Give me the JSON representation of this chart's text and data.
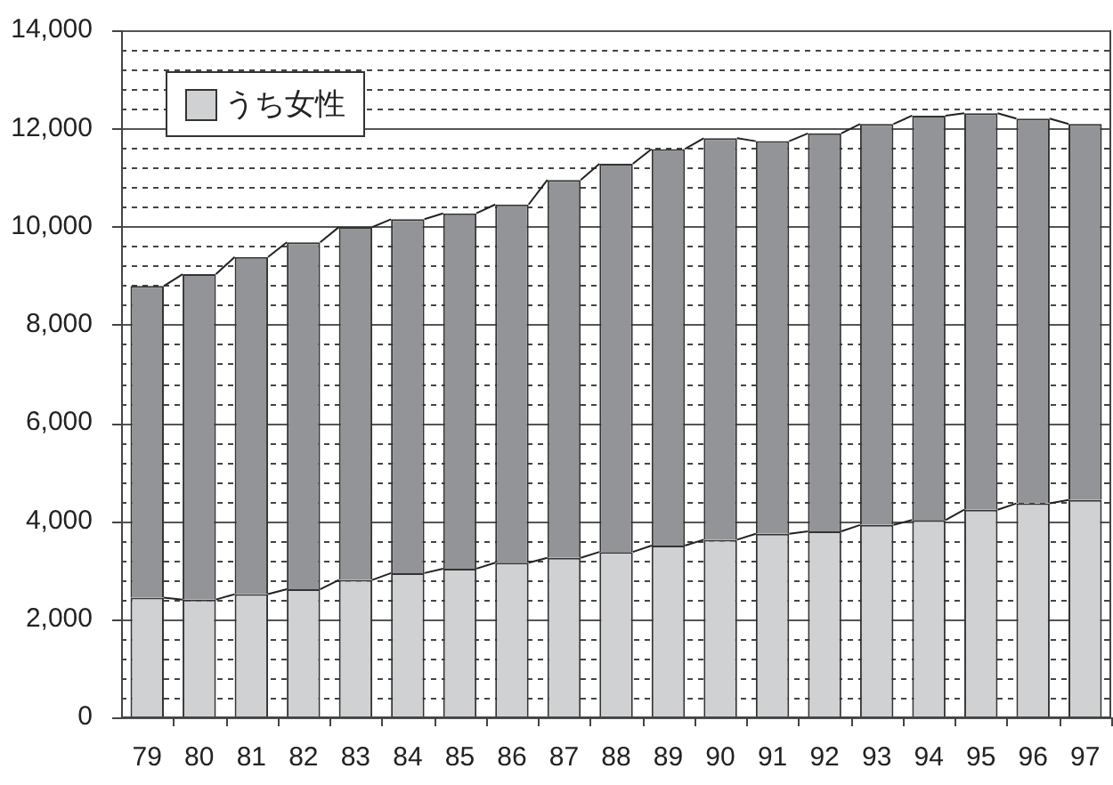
{
  "chart_data": {
    "type": "bar",
    "stacked": true,
    "categories": [
      "79",
      "80",
      "81",
      "82",
      "83",
      "84",
      "85",
      "86",
      "87",
      "88",
      "89",
      "90",
      "91",
      "92",
      "93",
      "94",
      "95",
      "96",
      "97"
    ],
    "series": [
      {
        "name": "うち女性",
        "color": "#d0d1d3",
        "values": [
          2440,
          2400,
          2510,
          2610,
          2800,
          2940,
          3030,
          3150,
          3250,
          3370,
          3500,
          3620,
          3740,
          3790,
          3920,
          4020,
          4230,
          4360,
          4430
        ]
      },
      {
        "color": "#929497",
        "values": [
          6350,
          6630,
          6870,
          7070,
          7190,
          7210,
          7240,
          7300,
          7700,
          7910,
          8080,
          8180,
          8000,
          8110,
          8170,
          8240,
          8080,
          7840,
          7660
        ]
      }
    ],
    "ylim": [
      0,
      14000
    ],
    "yticks": [
      0,
      {
        "value": 400,
        "label": null
      },
      {
        "value": 800,
        "label": null
      },
      {
        "value": 1200,
        "label": null
      },
      {
        "value": 1600,
        "label": null
      },
      "2,000",
      {
        "value": 2400,
        "label": null
      },
      {
        "value": 2800,
        "label": null
      },
      {
        "value": 3200,
        "label": null
      },
      {
        "value": 3600,
        "label": null
      },
      {
        "value": 4000,
        "label": "4,000"
      },
      {
        "value": 4400,
        "label": null
      },
      {
        "value": 4800,
        "label": null
      },
      {
        "value": 5200,
        "label": null
      },
      {
        "value": 5600,
        "label": null
      },
      {
        "value": 6000,
        "label": "6,000"
      },
      {
        "value": 6400,
        "label": null
      },
      {
        "value": 6800,
        "label": null
      },
      {
        "value": 7200,
        "label": null
      },
      {
        "value": 7600,
        "label": null
      },
      {
        "value": 8000,
        "label": "8,000"
      },
      {
        "value": 8400,
        "label": null
      },
      {
        "value": 8800,
        "label": null
      },
      {
        "value": 9200,
        "label": null
      },
      {
        "value": 9600,
        "label": null
      },
      {
        "value": 10000,
        "label": "10,000"
      },
      {
        "value": 10400,
        "label": null
      },
      {
        "value": 10800,
        "label": null
      },
      {
        "value": 11200,
        "label": null
      },
      {
        "value": 11600,
        "label": null
      },
      {
        "value": 12000,
        "label": "12,000"
      },
      {
        "value": 12400,
        "label": null
      },
      {
        "value": 12800,
        "label": null
      },
      {
        "value": 13200,
        "label": null
      },
      {
        "value": 13600,
        "label": null
      },
      {
        "value": 14000,
        "label": "14,000"
      }
    ],
    "grid": "y",
    "legend": "top left"
  }
}
